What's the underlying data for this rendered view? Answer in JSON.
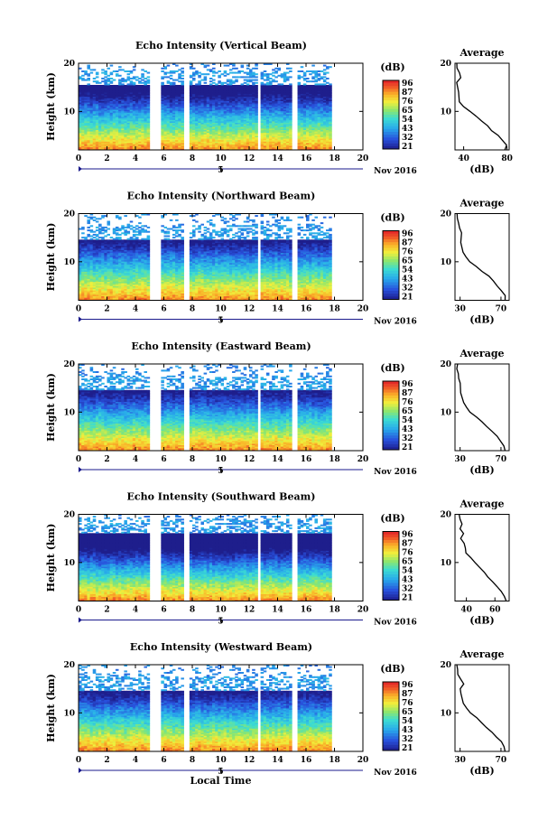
{
  "chart_data": [
    {
      "type": "heatmap",
      "title": "Echo Intensity (Vertical Beam)",
      "xlabel": "",
      "ylabel": "Height (km)",
      "date_label": "Nov 2016",
      "xlim": [
        0,
        20
      ],
      "ylim": [
        2,
        20
      ],
      "x_ticks": [
        "0",
        "2",
        "4",
        "6",
        "8",
        "10",
        "12",
        "14",
        "16",
        "18",
        "20"
      ],
      "y_ticks": [
        "20",
        "10"
      ],
      "day_label": "5",
      "data_gaps": [
        [
          5.0,
          5.7
        ],
        [
          7.5,
          7.7
        ],
        [
          12.6,
          12.85
        ],
        [
          15.0,
          15.3
        ]
      ],
      "data_end": 17.7,
      "top_height_km": 18.5,
      "profile_c": 6.5,
      "colorbar": {
        "label": "(dB)",
        "ticks": [
          "96",
          "87",
          "76",
          "65",
          "54",
          "43",
          "32",
          "21"
        ]
      },
      "average": {
        "title": "Average",
        "xlabel": "(dB)",
        "x_ticks": [
          "40",
          "80"
        ],
        "xlim": [
          32,
          82
        ],
        "y_ticks": [
          "20",
          "10"
        ],
        "profile_dB_by_km": [
          [
            2,
            78
          ],
          [
            3,
            80
          ],
          [
            4,
            76
          ],
          [
            5,
            72
          ],
          [
            6,
            66
          ],
          [
            7,
            62
          ],
          [
            8,
            57
          ],
          [
            9,
            52
          ],
          [
            10,
            46
          ],
          [
            11,
            40
          ],
          [
            12,
            36
          ],
          [
            14,
            35
          ],
          [
            16,
            34
          ],
          [
            17,
            37
          ],
          [
            18,
            36
          ],
          [
            19,
            34
          ],
          [
            20,
            34
          ]
        ]
      }
    },
    {
      "type": "heatmap",
      "title": "Echo Intensity (Northward Beam)",
      "xlabel": "",
      "ylabel": "Height (km)",
      "date_label": "Nov 2016",
      "xlim": [
        0,
        20
      ],
      "ylim": [
        2,
        20
      ],
      "x_ticks": [
        "0",
        "2",
        "4",
        "6",
        "8",
        "10",
        "12",
        "14",
        "16",
        "18",
        "20"
      ],
      "y_ticks": [
        "20",
        "10"
      ],
      "day_label": "5",
      "data_gaps": [
        [
          5.0,
          5.7
        ],
        [
          7.5,
          7.7
        ],
        [
          12.6,
          12.85
        ],
        [
          15.0,
          15.3
        ]
      ],
      "data_end": 17.7,
      "top_height_km": 17.5,
      "profile_c": 7.0,
      "colorbar": {
        "label": "(dB)",
        "ticks": [
          "96",
          "87",
          "76",
          "65",
          "54",
          "43",
          "32",
          "21"
        ]
      },
      "average": {
        "title": "Average",
        "xlabel": "(dB)",
        "x_ticks": [
          "30",
          "70"
        ],
        "xlim": [
          25,
          78
        ],
        "y_ticks": [
          "20",
          "10"
        ],
        "profile_dB_by_km": [
          [
            2,
            74
          ],
          [
            3,
            74
          ],
          [
            4,
            70
          ],
          [
            5,
            66
          ],
          [
            6,
            62
          ],
          [
            7,
            58
          ],
          [
            8,
            52
          ],
          [
            9,
            46
          ],
          [
            10,
            40
          ],
          [
            11,
            36
          ],
          [
            12,
            33
          ],
          [
            14,
            31
          ],
          [
            16,
            32
          ],
          [
            17,
            30
          ],
          [
            18,
            28
          ],
          [
            19,
            27
          ],
          [
            20,
            27
          ]
        ]
      }
    },
    {
      "type": "heatmap",
      "title": "Echo Intensity (Eastward Beam)",
      "xlabel": "",
      "ylabel": "Height (km)",
      "date_label": "Nov 2016",
      "xlim": [
        0,
        20
      ],
      "ylim": [
        2,
        20
      ],
      "x_ticks": [
        "0",
        "2",
        "4",
        "6",
        "8",
        "10",
        "12",
        "14",
        "16",
        "18",
        "20"
      ],
      "y_ticks": [
        "20",
        "10"
      ],
      "day_label": "5",
      "data_gaps": [
        [
          5.0,
          5.7
        ],
        [
          7.5,
          7.7
        ],
        [
          12.6,
          12.85
        ],
        [
          15.0,
          15.3
        ]
      ],
      "data_end": 17.7,
      "top_height_km": 17.5,
      "profile_c": 7.0,
      "colorbar": {
        "label": "(dB)",
        "ticks": [
          "96",
          "87",
          "76",
          "65",
          "54",
          "43",
          "32",
          "21"
        ]
      },
      "average": {
        "title": "Average",
        "xlabel": "(dB)",
        "x_ticks": [
          "30",
          "70"
        ],
        "xlim": [
          25,
          78
        ],
        "y_ticks": [
          "20",
          "10"
        ],
        "profile_dB_by_km": [
          [
            2,
            74
          ],
          [
            3,
            73
          ],
          [
            4,
            70
          ],
          [
            5,
            66
          ],
          [
            6,
            61
          ],
          [
            7,
            56
          ],
          [
            8,
            51
          ],
          [
            9,
            46
          ],
          [
            10,
            40
          ],
          [
            11,
            36
          ],
          [
            12,
            33
          ],
          [
            14,
            31
          ],
          [
            16,
            30
          ],
          [
            17,
            29
          ],
          [
            18,
            28
          ],
          [
            19,
            27
          ],
          [
            20,
            27
          ]
        ]
      }
    },
    {
      "type": "heatmap",
      "title": "Echo Intensity (Southward Beam)",
      "xlabel": "",
      "ylabel": "Height (km)",
      "date_label": "Nov 2016",
      "xlim": [
        0,
        20
      ],
      "ylim": [
        2,
        20
      ],
      "x_ticks": [
        "0",
        "2",
        "4",
        "6",
        "8",
        "10",
        "12",
        "14",
        "16",
        "18",
        "20"
      ],
      "y_ticks": [
        "20",
        "10"
      ],
      "day_label": "5",
      "data_gaps": [
        [
          5.0,
          5.7
        ],
        [
          7.5,
          7.7
        ],
        [
          12.6,
          12.85
        ],
        [
          15.0,
          15.3
        ]
      ],
      "data_end": 17.7,
      "top_height_km": 19.0,
      "profile_c": 6.0,
      "colorbar": {
        "label": "(dB)",
        "ticks": [
          "96",
          "87",
          "76",
          "65",
          "54",
          "43",
          "32",
          "21"
        ]
      },
      "average": {
        "title": "Average",
        "xlabel": "(dB)",
        "x_ticks": [
          "40",
          "60"
        ],
        "xlim": [
          32,
          70
        ],
        "y_ticks": [
          "20",
          "10"
        ],
        "profile_dB_by_km": [
          [
            2,
            68
          ],
          [
            3,
            67
          ],
          [
            4,
            64
          ],
          [
            5,
            61
          ],
          [
            6,
            58
          ],
          [
            7,
            55
          ],
          [
            8,
            52
          ],
          [
            9,
            49
          ],
          [
            10,
            46
          ],
          [
            11,
            43
          ],
          [
            12,
            40
          ],
          [
            13,
            39
          ],
          [
            14,
            38
          ],
          [
            15,
            36
          ],
          [
            16,
            38
          ],
          [
            17,
            36
          ],
          [
            18,
            37
          ],
          [
            19,
            36
          ],
          [
            20,
            35
          ]
        ]
      }
    },
    {
      "type": "heatmap",
      "title": "Echo Intensity (Westward Beam)",
      "xlabel": "Local Time",
      "ylabel": "Height (km)",
      "date_label": "Nov 2016",
      "xlim": [
        0,
        20
      ],
      "ylim": [
        2,
        20
      ],
      "x_ticks": [
        "0",
        "2",
        "4",
        "6",
        "8",
        "10",
        "12",
        "14",
        "16",
        "18",
        "20"
      ],
      "y_ticks": [
        "20",
        "10"
      ],
      "day_label": "5",
      "data_gaps": [
        [
          5.0,
          5.7
        ],
        [
          7.5,
          7.7
        ],
        [
          12.6,
          12.85
        ],
        [
          15.0,
          15.3
        ]
      ],
      "data_end": 17.7,
      "top_height_km": 17.5,
      "profile_c": 7.0,
      "colorbar": {
        "label": "(dB)",
        "ticks": [
          "96",
          "87",
          "76",
          "65",
          "54",
          "43",
          "32",
          "21"
        ]
      },
      "average": {
        "title": "Average",
        "xlabel": "(dB)",
        "x_ticks": [
          "30",
          "70"
        ],
        "xlim": [
          25,
          78
        ],
        "y_ticks": [
          "20",
          "10"
        ],
        "profile_dB_by_km": [
          [
            2,
            74
          ],
          [
            3,
            73
          ],
          [
            4,
            70
          ],
          [
            5,
            66
          ],
          [
            6,
            61
          ],
          [
            7,
            56
          ],
          [
            8,
            51
          ],
          [
            9,
            46
          ],
          [
            10,
            40
          ],
          [
            11,
            36
          ],
          [
            12,
            33
          ],
          [
            14,
            31
          ],
          [
            15,
            30
          ],
          [
            16,
            33
          ],
          [
            17,
            31
          ],
          [
            18,
            28
          ],
          [
            19,
            27
          ],
          [
            20,
            27
          ]
        ]
      }
    }
  ]
}
